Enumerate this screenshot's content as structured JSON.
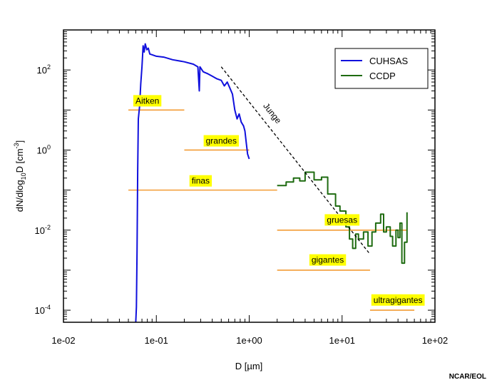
{
  "chart_data": {
    "type": "line",
    "xscale": "log",
    "yscale": "log",
    "xlim": [
      0.01,
      100
    ],
    "ylim": [
      5e-05,
      1000
    ],
    "xlabel": "D [µm]",
    "ylabel": {
      "base": "dN/dlog",
      "sub": "10",
      "mid": "D [cm",
      "sup": "-3",
      "end": "]"
    },
    "x_ticks": [
      {
        "value": 0.01,
        "label": "1e-02"
      },
      {
        "value": 0.1,
        "label": "1e-01"
      },
      {
        "value": 1,
        "label": "1e+00"
      },
      {
        "value": 10,
        "label": "1e+01"
      },
      {
        "value": 100,
        "label": "1e+02"
      }
    ],
    "y_ticks": [
      {
        "value": 100,
        "mant": "10",
        "exp": "2"
      },
      {
        "value": 1,
        "mant": "10",
        "exp": "0"
      },
      {
        "value": 0.01,
        "mant": "10",
        "exp": "-2"
      },
      {
        "value": 0.0001,
        "mant": "10",
        "exp": "-4"
      }
    ],
    "legend_position": "top-right",
    "series": [
      {
        "name": "CUHSAS",
        "color": "#1010dd",
        "points": [
          [
            0.06,
            5e-05
          ],
          [
            0.061,
            0.00012
          ],
          [
            0.062,
            0.003
          ],
          [
            0.063,
            0.3
          ],
          [
            0.064,
            6
          ],
          [
            0.066,
            12
          ],
          [
            0.068,
            45
          ],
          [
            0.07,
            120
          ],
          [
            0.072,
            400
          ],
          [
            0.074,
            280
          ],
          [
            0.076,
            450
          ],
          [
            0.079,
            320
          ],
          [
            0.082,
            350
          ],
          [
            0.085,
            250
          ],
          [
            0.09,
            240
          ],
          [
            0.1,
            220
          ],
          [
            0.12,
            210
          ],
          [
            0.15,
            180
          ],
          [
            0.2,
            160
          ],
          [
            0.25,
            140
          ],
          [
            0.28,
            120
          ],
          [
            0.29,
            30
          ],
          [
            0.295,
            120
          ],
          [
            0.32,
            90
          ],
          [
            0.36,
            80
          ],
          [
            0.4,
            70
          ],
          [
            0.45,
            60
          ],
          [
            0.5,
            55
          ],
          [
            0.54,
            40
          ],
          [
            0.58,
            50
          ],
          [
            0.62,
            35
          ],
          [
            0.66,
            25
          ],
          [
            0.7,
            10
          ],
          [
            0.74,
            6
          ],
          [
            0.78,
            8
          ],
          [
            0.82,
            5
          ],
          [
            0.87,
            4
          ],
          [
            0.9,
            3
          ],
          [
            0.93,
            1.5
          ],
          [
            0.96,
            0.8
          ],
          [
            1.0,
            0.6
          ]
        ]
      },
      {
        "name": "CCDP",
        "color": "#1e6b10",
        "points": [
          [
            2.0,
            0.13
          ],
          [
            2.5,
            0.13
          ],
          [
            2.5,
            0.16
          ],
          [
            3.0,
            0.16
          ],
          [
            3.0,
            0.2
          ],
          [
            3.5,
            0.2
          ],
          [
            3.5,
            0.17
          ],
          [
            4.0,
            0.17
          ],
          [
            4.0,
            0.28
          ],
          [
            5.0,
            0.28
          ],
          [
            5.0,
            0.18
          ],
          [
            6.0,
            0.18
          ],
          [
            6.0,
            0.21
          ],
          [
            7.0,
            0.21
          ],
          [
            7.0,
            0.08
          ],
          [
            8.5,
            0.08
          ],
          [
            8.5,
            0.04
          ],
          [
            9.5,
            0.04
          ],
          [
            9.5,
            0.03
          ],
          [
            11.0,
            0.03
          ],
          [
            11.0,
            0.012
          ],
          [
            12.0,
            0.012
          ],
          [
            12.0,
            0.006
          ],
          [
            13.0,
            0.006
          ],
          [
            13.0,
            0.0035
          ],
          [
            14.0,
            0.0035
          ],
          [
            14.0,
            0.008
          ],
          [
            15.0,
            0.008
          ],
          [
            15.0,
            0.006
          ],
          [
            17.0,
            0.006
          ],
          [
            17.0,
            0.009
          ],
          [
            19.0,
            0.009
          ],
          [
            19.0,
            0.004
          ],
          [
            21.0,
            0.004
          ],
          [
            21.0,
            0.009
          ],
          [
            23.0,
            0.009
          ],
          [
            23.0,
            0.015
          ],
          [
            26.0,
            0.015
          ],
          [
            26.0,
            0.025
          ],
          [
            28.0,
            0.025
          ],
          [
            28.0,
            0.009
          ],
          [
            30.0,
            0.009
          ],
          [
            30.0,
            0.012
          ],
          [
            33.0,
            0.012
          ],
          [
            33.0,
            0.007
          ],
          [
            35.0,
            0.007
          ],
          [
            35.0,
            0.004
          ],
          [
            38.0,
            0.004
          ],
          [
            38.0,
            0.01
          ],
          [
            40.0,
            0.01
          ],
          [
            40.0,
            0.0065
          ],
          [
            42.0,
            0.0065
          ],
          [
            42.0,
            0.015
          ],
          [
            44.0,
            0.015
          ],
          [
            44.0,
            0.0015
          ],
          [
            47.0,
            0.0015
          ],
          [
            47.0,
            0.005
          ],
          [
            50.0,
            0.005
          ],
          [
            50.0,
            0.028
          ]
        ]
      }
    ],
    "junge_line": {
      "label": "Junge",
      "points": [
        [
          0.5,
          120
        ],
        [
          20,
          0.0025
        ]
      ]
    },
    "modes": [
      {
        "label": "Aitken",
        "x_range": [
          0.05,
          0.2
        ],
        "y": 10,
        "label_x": 0.08,
        "label_y": 17
      },
      {
        "label": "grandes",
        "x_range": [
          0.2,
          1.0
        ],
        "y": 1.0,
        "label_x": 0.5,
        "label_y": 1.7
      },
      {
        "label": "finas",
        "x_range": [
          0.05,
          2.0
        ],
        "y": 0.1,
        "label_x": 0.3,
        "label_y": 0.17
      },
      {
        "label": "gruesas",
        "x_range": [
          2.0,
          50
        ],
        "y": 0.01,
        "label_x": 10,
        "label_y": 0.018
      },
      {
        "label": "gigantes",
        "x_range": [
          2.0,
          20
        ],
        "y": 0.001,
        "label_x": 7,
        "label_y": 0.0018
      },
      {
        "label": "ultragigantes",
        "x_range": [
          20,
          60
        ],
        "y": 0.0001,
        "label_x": 40,
        "label_y": 0.00018
      }
    ],
    "mode_line_color": "#f39c35",
    "label_bg_color": "#ffff00"
  },
  "credit": "NCAR/EOL"
}
